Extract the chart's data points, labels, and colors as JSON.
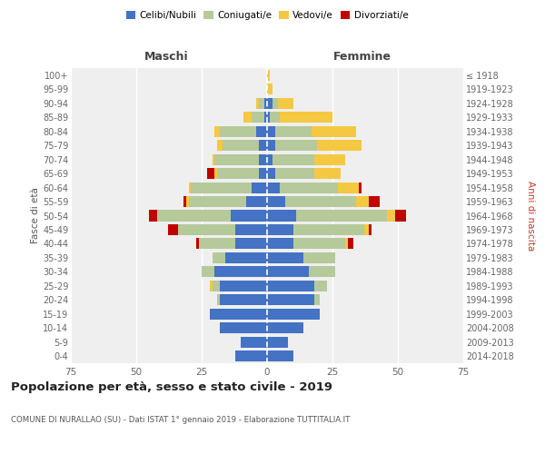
{
  "age_groups": [
    "0-4",
    "5-9",
    "10-14",
    "15-19",
    "20-24",
    "25-29",
    "30-34",
    "35-39",
    "40-44",
    "45-49",
    "50-54",
    "55-59",
    "60-64",
    "65-69",
    "70-74",
    "75-79",
    "80-84",
    "85-89",
    "90-94",
    "95-99",
    "100+"
  ],
  "birth_years": [
    "2014-2018",
    "2009-2013",
    "2004-2008",
    "1999-2003",
    "1994-1998",
    "1989-1993",
    "1984-1988",
    "1979-1983",
    "1974-1978",
    "1969-1973",
    "1964-1968",
    "1959-1963",
    "1954-1958",
    "1949-1953",
    "1944-1948",
    "1939-1943",
    "1934-1938",
    "1929-1933",
    "1924-1928",
    "1919-1923",
    "≤ 1918"
  ],
  "males": {
    "celibe": [
      12,
      10,
      18,
      22,
      18,
      18,
      20,
      16,
      12,
      12,
      14,
      8,
      6,
      3,
      3,
      3,
      4,
      1,
      1,
      0,
      0
    ],
    "coniugato": [
      0,
      0,
      0,
      0,
      1,
      3,
      5,
      5,
      14,
      22,
      28,
      22,
      23,
      16,
      17,
      14,
      14,
      5,
      2,
      0,
      0
    ],
    "vedovo": [
      0,
      0,
      0,
      0,
      0,
      1,
      0,
      0,
      0,
      0,
      0,
      1,
      1,
      1,
      1,
      2,
      2,
      3,
      1,
      0,
      0
    ],
    "divorziato": [
      0,
      0,
      0,
      0,
      0,
      0,
      0,
      0,
      1,
      4,
      3,
      1,
      0,
      3,
      0,
      0,
      0,
      0,
      0,
      0,
      0
    ]
  },
  "females": {
    "nubile": [
      10,
      8,
      14,
      20,
      18,
      18,
      16,
      14,
      10,
      10,
      11,
      7,
      5,
      3,
      2,
      3,
      3,
      1,
      2,
      0,
      0
    ],
    "coniugata": [
      0,
      0,
      0,
      0,
      2,
      5,
      10,
      12,
      20,
      27,
      35,
      27,
      22,
      15,
      16,
      16,
      14,
      4,
      2,
      0,
      0
    ],
    "vedova": [
      0,
      0,
      0,
      0,
      0,
      0,
      0,
      0,
      1,
      2,
      3,
      5,
      8,
      10,
      12,
      17,
      17,
      20,
      6,
      2,
      1
    ],
    "divorziata": [
      0,
      0,
      0,
      0,
      0,
      0,
      0,
      0,
      2,
      1,
      4,
      4,
      1,
      0,
      0,
      0,
      0,
      0,
      0,
      0,
      0
    ]
  },
  "colors": {
    "celibe": "#4472c4",
    "coniugato": "#b5c99a",
    "vedovo": "#f5c842",
    "divorziato": "#c00000"
  },
  "xlim": 75,
  "title": "Popolazione per età, sesso e stato civile - 2019",
  "subtitle": "COMUNE DI NURALLAO (SU) - Dati ISTAT 1° gennaio 2019 - Elaborazione TUTTITALIA.IT",
  "legend_labels": [
    "Celibi/Nubili",
    "Coniugati/e",
    "Vedovi/e",
    "Divorziati/e"
  ],
  "bg_color": "#efefef"
}
